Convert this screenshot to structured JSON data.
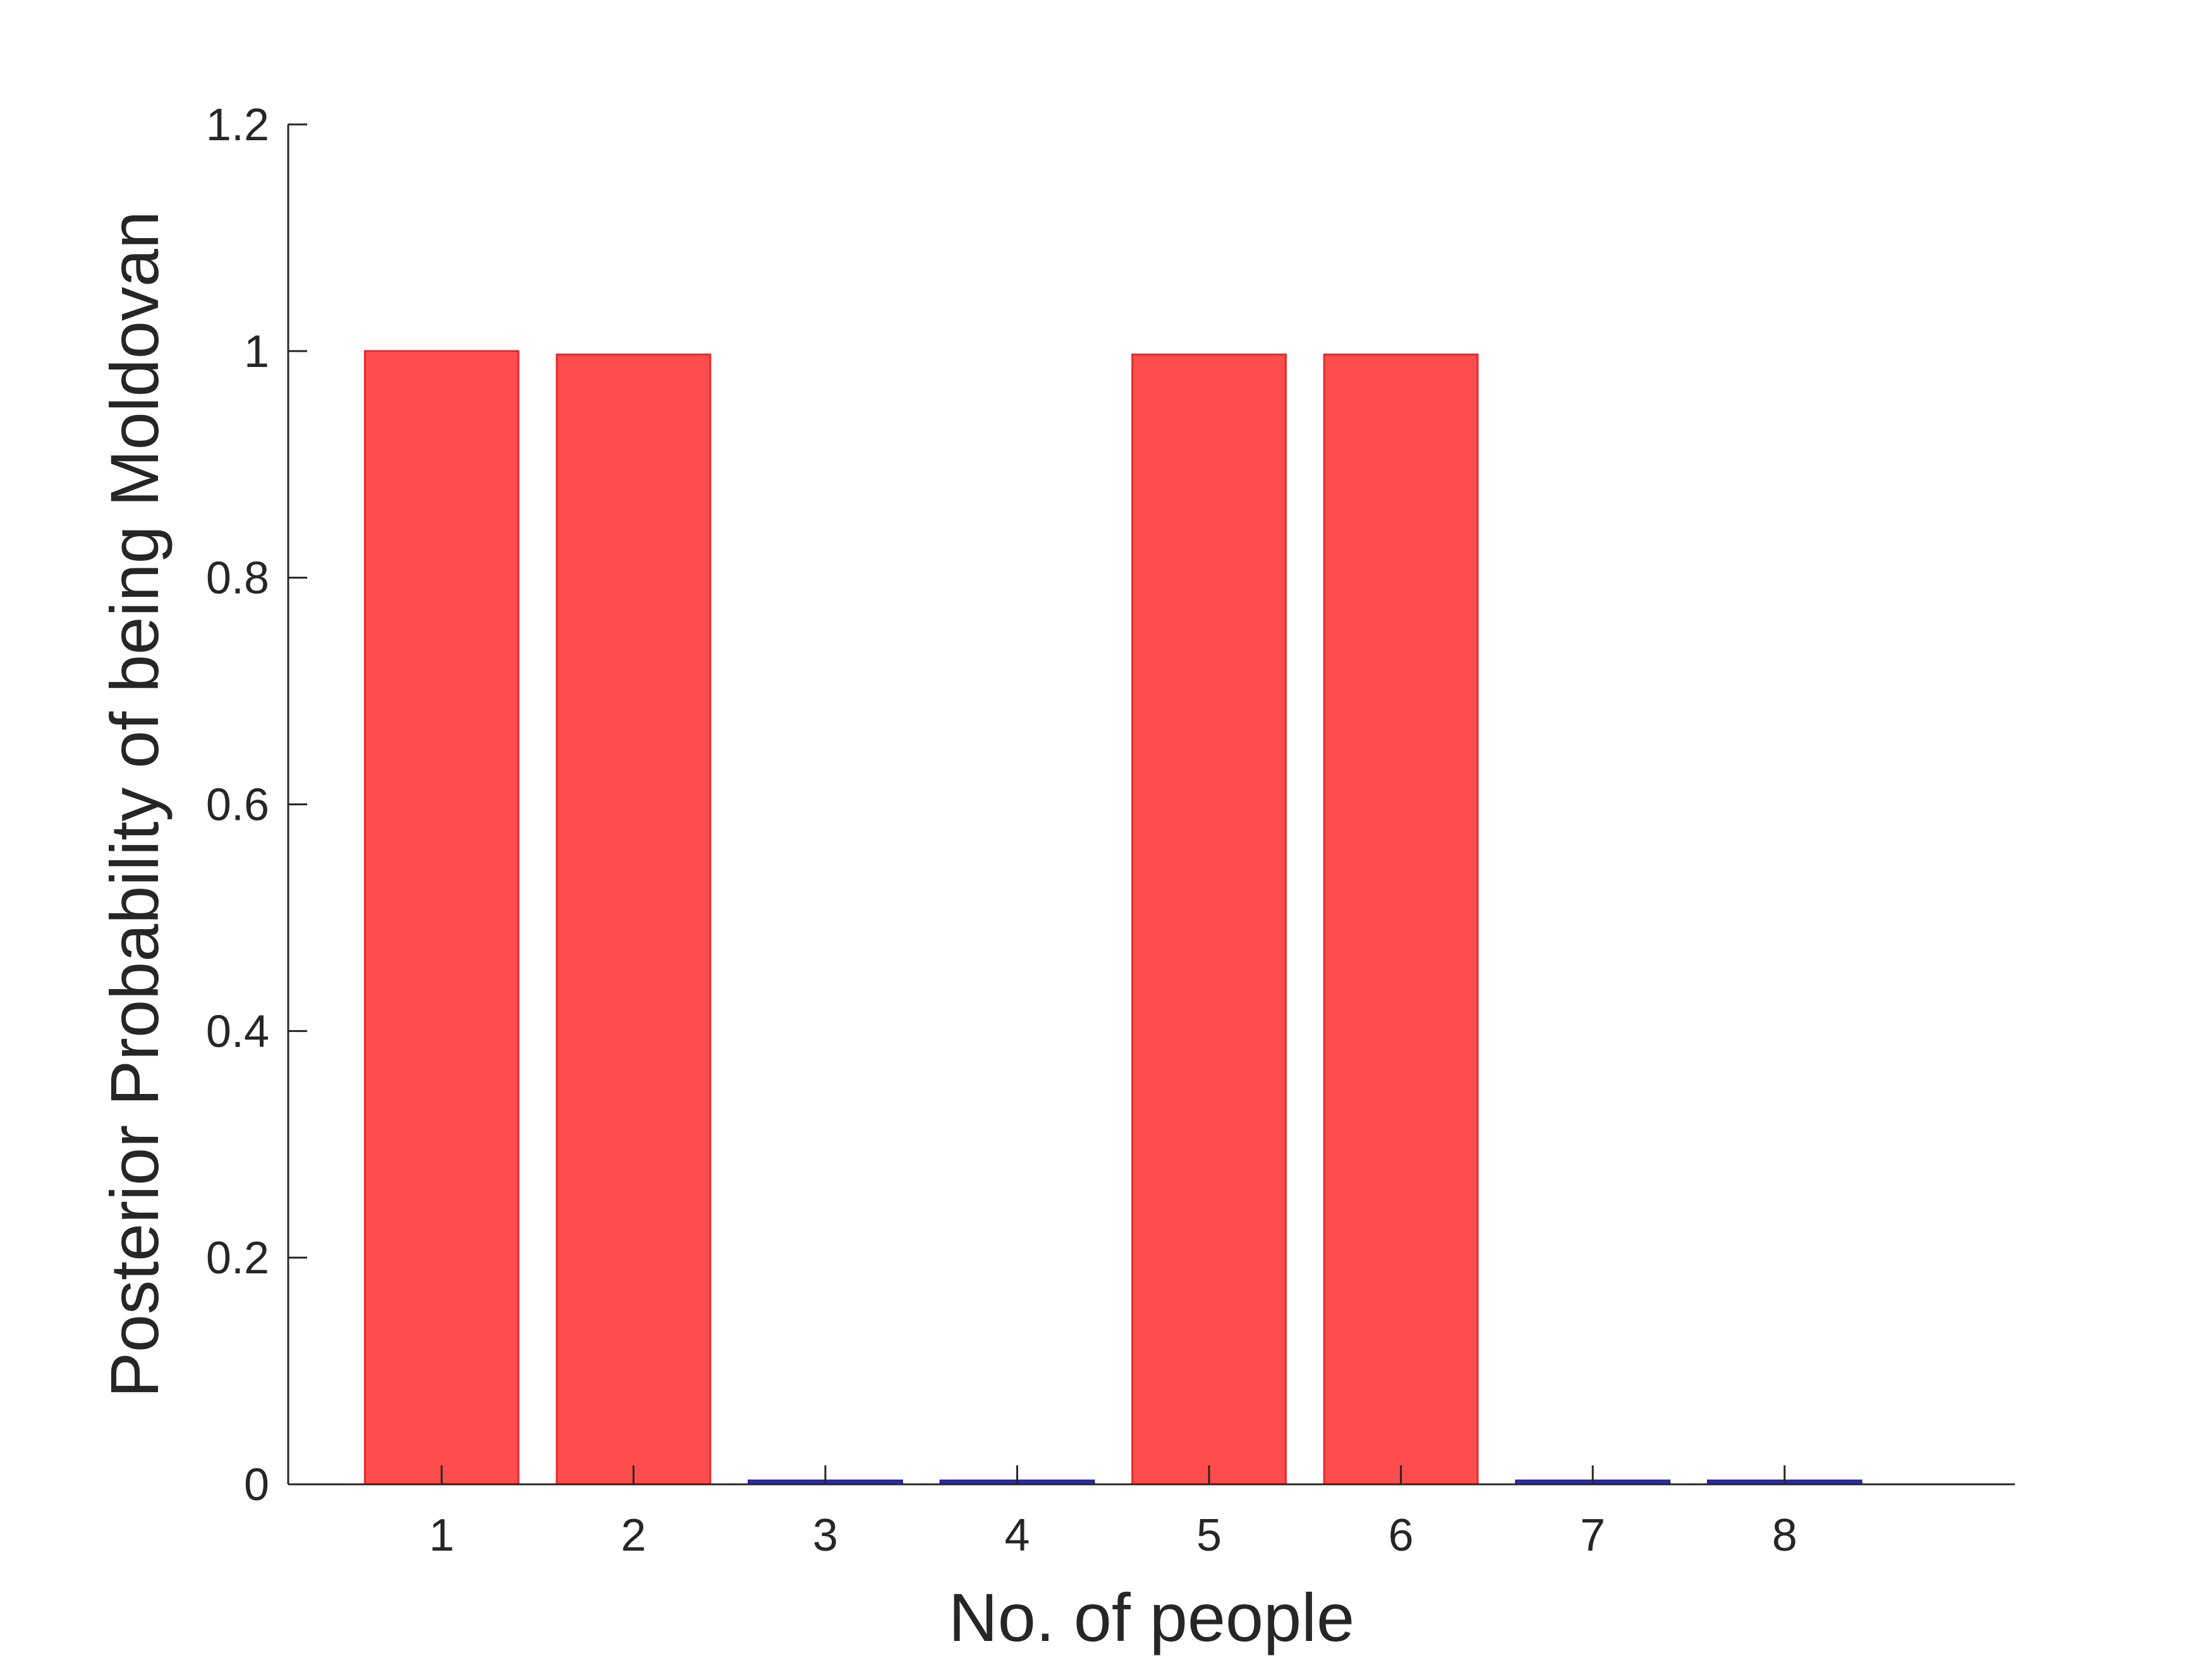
{
  "chart_data": {
    "type": "bar",
    "title": "",
    "xlabel": "No. of people",
    "ylabel": "Posterior Probability of being Moldovan",
    "categories": [
      "1",
      "2",
      "3",
      "4",
      "5",
      "6",
      "7",
      "8"
    ],
    "x": [
      1,
      2,
      3,
      4,
      5,
      6,
      7,
      8
    ],
    "values": [
      1.0,
      0.997,
      0.003,
      0.003,
      0.997,
      0.997,
      0.003,
      0.003
    ],
    "bar_classes": [
      "high",
      "high",
      "low",
      "low",
      "high",
      "high",
      "low",
      "low"
    ],
    "xlim": [
      0.2,
      9.2
    ],
    "ylim": [
      0,
      1.2
    ],
    "yticks": [
      0,
      0.2,
      0.4,
      0.6,
      0.8,
      1,
      1.2
    ],
    "ytick_labels": [
      "0",
      "0.2",
      "0.4",
      "0.6",
      "0.8",
      "1",
      "1.2"
    ],
    "xtick_labels": [
      "1",
      "2",
      "3",
      "4",
      "5",
      "6",
      "7",
      "8"
    ],
    "grid": false,
    "colors": {
      "high_fill": "#ff4d4d",
      "high_edge": "#e8282f",
      "low_fill": "#2f2f9f",
      "low_edge": "#2323a0",
      "axis": "#262626"
    }
  }
}
